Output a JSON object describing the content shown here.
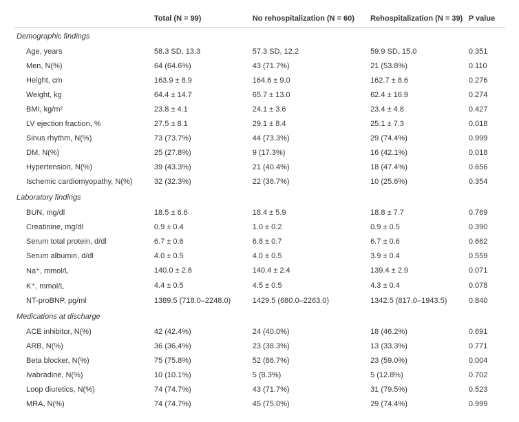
{
  "headers": {
    "label": "",
    "total": "Total (N = 99)",
    "norehosp": "No rehospitalization (N = 60)",
    "rehosp": "Rehospitalization (N = 39)",
    "pvalue": "P value"
  },
  "sections": [
    {
      "title": "Demographic findings",
      "rows": [
        {
          "label": "Age, years",
          "total": "58.3 SD, 13.3",
          "norehosp": "57.3 SD, 12.2",
          "rehosp": "59.9 SD, 15.0",
          "pvalue": "0.351"
        },
        {
          "label": "Men, N(%)",
          "total": "64 (64.6%)",
          "norehosp": "43 (71.7%)",
          "rehosp": "21 (53.8%)",
          "pvalue": "0.110"
        },
        {
          "label": "Height, cm",
          "total": "163.9 ± 8.9",
          "norehosp": "164.6 ± 9.0",
          "rehosp": "162.7 ± 8.6",
          "pvalue": "0.276"
        },
        {
          "label": "Weight, kg",
          "total": "64.4 ± 14.7",
          "norehosp": "65.7 ± 13.0",
          "rehosp": "62.4 ± 16.9",
          "pvalue": "0.274"
        },
        {
          "label": "BMI, kg/m²",
          "total": "23.8 ± 4.1",
          "norehosp": "24.1 ± 3.6",
          "rehosp": "23.4 ± 4.8",
          "pvalue": "0.427"
        },
        {
          "label": "LV ejection fraction, %",
          "total": "27.5 ± 8.1",
          "norehosp": "29.1 ± 8.4",
          "rehosp": "25.1 ± 7.3",
          "pvalue": "0.018"
        },
        {
          "label": "Sinus rhythm, N(%)",
          "total": "73 (73.7%)",
          "norehosp": "44 (73.3%)",
          "rehosp": "29 (74.4%)",
          "pvalue": "0.999"
        },
        {
          "label": "DM, N(%)",
          "total": "25 (27.8%)",
          "norehosp": "9 (17.3%)",
          "rehosp": "16 (42.1%)",
          "pvalue": "0.018"
        },
        {
          "label": "Hypertension, N(%)",
          "total": "39 (43.3%)",
          "norehosp": "21 (40.4%)",
          "rehosp": "18 (47.4%)",
          "pvalue": "0.656"
        },
        {
          "label": "Ischemic cardiomyopathy, N(%)",
          "total": "32 (32.3%)",
          "norehosp": "22 (36.7%)",
          "rehosp": "10 (25.6%)",
          "pvalue": "0.354"
        }
      ]
    },
    {
      "title": "Laboratory findings",
      "rows": [
        {
          "label": "BUN, mg/dl",
          "total": "18.5 ± 6.6",
          "norehosp": "18.4 ± 5.9",
          "rehosp": "18.8 ± 7.7",
          "pvalue": "0.769"
        },
        {
          "label": "Creatinine, mg/dl",
          "total": "0.9 ± 0.4",
          "norehosp": "1.0 ± 0.2",
          "rehosp": "0.9 ± 0.5",
          "pvalue": "0.390"
        },
        {
          "label": "Serum total protein, d/dl",
          "total": "6.7 ± 0.6",
          "norehosp": "6.8 ± 0.7",
          "rehosp": "6.7 ± 0.6",
          "pvalue": "0.662"
        },
        {
          "label": "Serum albumin, d/dl",
          "total": "4.0 ± 0.5",
          "norehosp": "4.0 ± 0.5",
          "rehosp": "3.9 ± 0.4",
          "pvalue": "0.559"
        },
        {
          "label": "Na⁺, mmol/L",
          "total": "140.0 ± 2.6",
          "norehosp": "140.4 ± 2.4",
          "rehosp": "139.4 ± 2.9",
          "pvalue": "0.071"
        },
        {
          "label": "K⁺, mmol/L",
          "total": "4.4 ± 0.5",
          "norehosp": "4.5 ± 0.5",
          "rehosp": "4.3 ± 0.4",
          "pvalue": "0.078"
        },
        {
          "label": "NT-proBNP, pg/ml",
          "total": "1389.5 (718.0–2248.0)",
          "norehosp": "1429.5 (680.0–2263.0)",
          "rehosp": "1342.5 (817.0–1943.5)",
          "pvalue": "0.840"
        }
      ]
    },
    {
      "title": "Medications at discharge",
      "rows": [
        {
          "label": "ACE inhibitor, N(%)",
          "total": "42 (42.4%)",
          "norehosp": "24 (40.0%)",
          "rehosp": "18 (46.2%)",
          "pvalue": "0.691"
        },
        {
          "label": "ARB, N(%)",
          "total": "36 (36.4%)",
          "norehosp": "23 (38.3%)",
          "rehosp": "13 (33.3%)",
          "pvalue": "0.771"
        },
        {
          "label": "Beta blocker, N(%)",
          "total": "75 (75.8%)",
          "norehosp": "52 (86.7%)",
          "rehosp": "23 (59.0%)",
          "pvalue": "0.004"
        },
        {
          "label": "Ivabradine, N(%)",
          "total": "10 (10.1%)",
          "norehosp": "5 (8.3%)",
          "rehosp": "5 (12.8%)",
          "pvalue": "0.702"
        },
        {
          "label": "Loop diuretics, N(%)",
          "total": "74 (74.7%)",
          "norehosp": "43 (71.7%)",
          "rehosp": "31 (79.5%)",
          "pvalue": "0.523"
        },
        {
          "label": "MRA, N(%)",
          "total": "74 (74.7%)",
          "norehosp": "45 (75.0%)",
          "rehosp": "29 (74.4%)",
          "pvalue": "0.999"
        }
      ]
    }
  ]
}
